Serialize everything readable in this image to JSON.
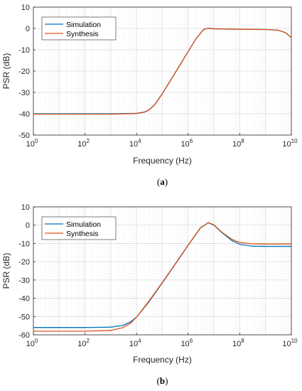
{
  "colors": {
    "simulation": "#0072BD",
    "synthesis": "#D95319",
    "grid": "#dcdcdc",
    "axis": "#262626"
  },
  "chart_data": [
    {
      "id": "a",
      "type": "line",
      "caption_label": "a",
      "xlabel": "Frequency (Hz)",
      "ylabel": "PSR (dB)",
      "xscale": "log",
      "xlim": [
        1,
        10000000000
      ],
      "ylim": [
        -50,
        10
      ],
      "yticks": [
        10,
        0,
        -10,
        -20,
        -30,
        -40,
        -50
      ],
      "xtick_labels": [
        {
          "base": "10",
          "exp": "0"
        },
        {
          "base": "10",
          "exp": "2"
        },
        {
          "base": "10",
          "exp": "4"
        },
        {
          "base": "10",
          "exp": "6"
        },
        {
          "base": "10",
          "exp": "8"
        },
        {
          "base": "10",
          "exp": "10"
        }
      ],
      "grid": true,
      "legend_position": "top-left",
      "series": [
        {
          "name": "Simulation",
          "color": "#0072BD",
          "x": [
            1,
            10,
            100,
            1000,
            10000,
            20000,
            30000,
            50000,
            100000,
            200000,
            500000,
            1000000,
            2000000,
            4000000,
            6000000,
            10000000,
            100000000,
            1000000000,
            3000000000,
            6000000000,
            10000000000
          ],
          "y": [
            -40,
            -40,
            -40,
            -40,
            -39.8,
            -39.2,
            -38.2,
            -35.8,
            -30.5,
            -24.6,
            -16.8,
            -10.8,
            -4.9,
            -0.5,
            0,
            -0.2,
            -0.4,
            -0.5,
            -0.8,
            -2,
            -4.3
          ]
        },
        {
          "name": "Synthesis",
          "color": "#D95319",
          "x": [
            1,
            10,
            100,
            1000,
            10000,
            20000,
            30000,
            50000,
            100000,
            200000,
            500000,
            1000000,
            2000000,
            4000000,
            6000000,
            10000000,
            100000000,
            1000000000,
            3000000000,
            6000000000,
            10000000000
          ],
          "y": [
            -40.2,
            -40.2,
            -40.2,
            -40.2,
            -39.9,
            -39.3,
            -38.3,
            -35.9,
            -30.6,
            -24.7,
            -16.8,
            -10.8,
            -4.9,
            -0.4,
            0.1,
            -0.1,
            -0.4,
            -0.5,
            -0.8,
            -2,
            -4.3
          ]
        }
      ]
    },
    {
      "id": "b",
      "type": "line",
      "caption_label": "b",
      "xlabel": "Frequency (Hz)",
      "ylabel": "PSR (dB)",
      "xscale": "log",
      "xlim": [
        1,
        10000000000
      ],
      "ylim": [
        -60,
        10
      ],
      "yticks": [
        10,
        0,
        -10,
        -20,
        -30,
        -40,
        -50,
        -60
      ],
      "xtick_labels": [
        {
          "base": "10",
          "exp": "0"
        },
        {
          "base": "10",
          "exp": "2"
        },
        {
          "base": "10",
          "exp": "4"
        },
        {
          "base": "10",
          "exp": "6"
        },
        {
          "base": "10",
          "exp": "8"
        },
        {
          "base": "10",
          "exp": "10"
        }
      ],
      "grid": true,
      "legend_position": "top-left",
      "series": [
        {
          "name": "Simulation",
          "color": "#0072BD",
          "x": [
            1,
            10,
            100,
            1000,
            3000,
            6000,
            10000,
            30000,
            100000,
            300000,
            1000000,
            3000000,
            6000000,
            10000000,
            20000000,
            50000000,
            100000000,
            300000000,
            1000000000,
            10000000000
          ],
          "y": [
            -56,
            -56,
            -56,
            -55.8,
            -54.8,
            -52.8,
            -50.3,
            -42,
            -31.5,
            -21.8,
            -11,
            -1.5,
            1.3,
            0,
            -4,
            -8.5,
            -10.5,
            -11.5,
            -11.6,
            -11.6
          ]
        },
        {
          "name": "Synthesis",
          "color": "#D95319",
          "x": [
            1,
            10,
            100,
            1000,
            3000,
            6000,
            10000,
            30000,
            100000,
            300000,
            1000000,
            3000000,
            6000000,
            10000000,
            20000000,
            50000000,
            100000000,
            300000000,
            1000000000,
            10000000000
          ],
          "y": [
            -58,
            -58,
            -58,
            -57.6,
            -56,
            -53.5,
            -50.3,
            -41.6,
            -31.3,
            -21.6,
            -10.9,
            -1.4,
            1.4,
            0.2,
            -3.8,
            -7.8,
            -9.5,
            -10.2,
            -10.3,
            -10.3
          ]
        }
      ]
    }
  ]
}
